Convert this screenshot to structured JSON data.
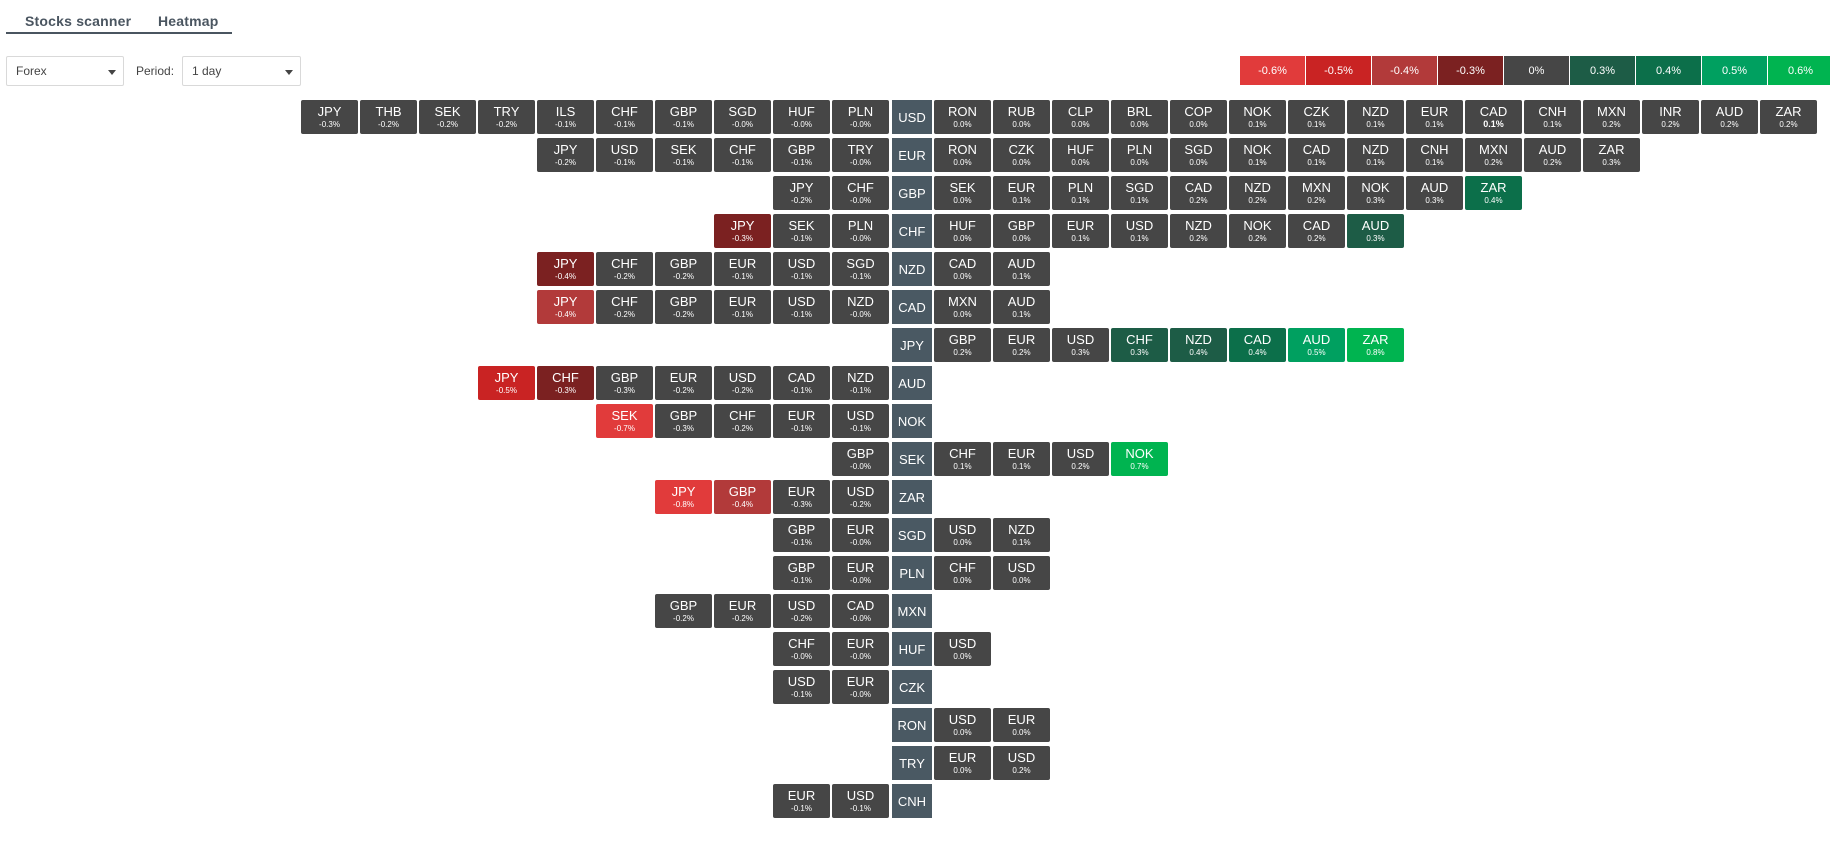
{
  "tabs": {
    "stocks": "Stocks scanner",
    "heatmap": "Heatmap"
  },
  "controls": {
    "market": "Forex",
    "period_label": "Period:",
    "period": "1 day"
  },
  "colors": {
    "neutral": "#464646",
    "base": "#4a5963",
    "-0.3": "#7b2121",
    "-0.4": "#b23a3a",
    "-0.5": "#c92323",
    "-0.6": "#e13b3b",
    "0.3": "#1d5c46",
    "0.4": "#0c6f4a",
    "0.5": "#00a060",
    "0.6": "#00b450"
  },
  "legend": [
    {
      "label": "-0.6%",
      "color": "#e13b3b"
    },
    {
      "label": "-0.5%",
      "color": "#c92323"
    },
    {
      "label": "-0.4%",
      "color": "#b23a3a"
    },
    {
      "label": "-0.3%",
      "color": "#7b2121"
    },
    {
      "label": "0%",
      "color": "#464646"
    },
    {
      "label": "0.3%",
      "color": "#1d5c46"
    },
    {
      "label": "0.4%",
      "color": "#0c6f4a"
    },
    {
      "label": "0.5%",
      "color": "#00a060"
    },
    {
      "label": "0.6%",
      "color": "#00b450"
    }
  ],
  "rows": [
    {
      "base": "USD",
      "left": [
        [
          "JPY",
          "-0.3%"
        ],
        [
          "THB",
          "-0.2%"
        ],
        [
          "SEK",
          "-0.2%"
        ],
        [
          "TRY",
          "-0.2%"
        ],
        [
          "ILS",
          "-0.1%"
        ],
        [
          "CHF",
          "-0.1%"
        ],
        [
          "GBP",
          "-0.1%"
        ],
        [
          "SGD",
          "-0.0%"
        ],
        [
          "HUF",
          "-0.0%"
        ],
        [
          "PLN",
          "-0.0%"
        ]
      ],
      "right": [
        [
          "RON",
          "0.0%"
        ],
        [
          "RUB",
          "0.0%"
        ],
        [
          "CLP",
          "0.0%"
        ],
        [
          "BRL",
          "0.0%"
        ],
        [
          "COP",
          "0.0%"
        ],
        [
          "NOK",
          "0.1%"
        ],
        [
          "CZK",
          "0.1%"
        ],
        [
          "NZD",
          "0.1%"
        ],
        [
          "EUR",
          "0.1%"
        ],
        [
          "CAD",
          "0.1%",
          null,
          true
        ],
        [
          "CNH",
          "0.1%"
        ],
        [
          "MXN",
          "0.2%"
        ],
        [
          "INR",
          "0.2%"
        ],
        [
          "AUD",
          "0.2%"
        ],
        [
          "ZAR",
          "0.2%"
        ]
      ]
    },
    {
      "base": "EUR",
      "left": [
        [
          "JPY",
          "-0.2%"
        ],
        [
          "USD",
          "-0.1%"
        ],
        [
          "SEK",
          "-0.1%"
        ],
        [
          "CHF",
          "-0.1%"
        ],
        [
          "GBP",
          "-0.1%"
        ],
        [
          "TRY",
          "-0.0%"
        ]
      ],
      "right": [
        [
          "RON",
          "0.0%"
        ],
        [
          "CZK",
          "0.0%"
        ],
        [
          "HUF",
          "0.0%"
        ],
        [
          "PLN",
          "0.0%"
        ],
        [
          "SGD",
          "0.0%"
        ],
        [
          "NOK",
          "0.1%"
        ],
        [
          "CAD",
          "0.1%"
        ],
        [
          "NZD",
          "0.1%"
        ],
        [
          "CNH",
          "0.1%"
        ],
        [
          "MXN",
          "0.2%"
        ],
        [
          "AUD",
          "0.2%"
        ],
        [
          "ZAR",
          "0.3%"
        ]
      ]
    },
    {
      "base": "GBP",
      "left": [
        [
          "JPY",
          "-0.2%"
        ],
        [
          "CHF",
          "-0.0%"
        ]
      ],
      "right": [
        [
          "SEK",
          "0.0%"
        ],
        [
          "EUR",
          "0.1%"
        ],
        [
          "PLN",
          "0.1%"
        ],
        [
          "SGD",
          "0.1%"
        ],
        [
          "CAD",
          "0.2%"
        ],
        [
          "NZD",
          "0.2%"
        ],
        [
          "MXN",
          "0.2%"
        ],
        [
          "NOK",
          "0.3%"
        ],
        [
          "AUD",
          "0.3%"
        ],
        [
          "ZAR",
          "0.4%",
          "0.4"
        ]
      ]
    },
    {
      "base": "CHF",
      "left": [
        [
          "JPY",
          "-0.3%",
          "-0.3"
        ],
        [
          "SEK",
          "-0.1%"
        ],
        [
          "PLN",
          "-0.0%"
        ]
      ],
      "right": [
        [
          "HUF",
          "0.0%"
        ],
        [
          "GBP",
          "0.0%"
        ],
        [
          "EUR",
          "0.1%"
        ],
        [
          "USD",
          "0.1%"
        ],
        [
          "NZD",
          "0.2%"
        ],
        [
          "NOK",
          "0.2%"
        ],
        [
          "CAD",
          "0.2%"
        ],
        [
          "AUD",
          "0.3%",
          "0.3"
        ]
      ]
    },
    {
      "base": "NZD",
      "left": [
        [
          "JPY",
          "-0.4%",
          "-0.3"
        ],
        [
          "CHF",
          "-0.2%"
        ],
        [
          "GBP",
          "-0.2%"
        ],
        [
          "EUR",
          "-0.1%"
        ],
        [
          "USD",
          "-0.1%"
        ],
        [
          "SGD",
          "-0.1%"
        ]
      ],
      "right": [
        [
          "CAD",
          "0.0%"
        ],
        [
          "AUD",
          "0.1%"
        ]
      ]
    },
    {
      "base": "CAD",
      "left": [
        [
          "JPY",
          "-0.4%",
          "-0.4"
        ],
        [
          "CHF",
          "-0.2%"
        ],
        [
          "GBP",
          "-0.2%"
        ],
        [
          "EUR",
          "-0.1%"
        ],
        [
          "USD",
          "-0.1%"
        ],
        [
          "NZD",
          "-0.0%"
        ]
      ],
      "right": [
        [
          "MXN",
          "0.0%"
        ],
        [
          "AUD",
          "0.1%"
        ]
      ]
    },
    {
      "base": "JPY",
      "left": [],
      "right": [
        [
          "GBP",
          "0.2%"
        ],
        [
          "EUR",
          "0.2%"
        ],
        [
          "USD",
          "0.3%"
        ],
        [
          "CHF",
          "0.3%",
          "0.3"
        ],
        [
          "NZD",
          "0.4%",
          "0.3"
        ],
        [
          "CAD",
          "0.4%",
          "0.4"
        ],
        [
          "AUD",
          "0.5%",
          "0.5"
        ],
        [
          "ZAR",
          "0.8%",
          "0.6"
        ]
      ]
    },
    {
      "base": "AUD",
      "left": [
        [
          "JPY",
          "-0.5%",
          "-0.5"
        ],
        [
          "CHF",
          "-0.3%",
          "-0.3"
        ],
        [
          "GBP",
          "-0.3%"
        ],
        [
          "EUR",
          "-0.2%"
        ],
        [
          "USD",
          "-0.2%"
        ],
        [
          "CAD",
          "-0.1%"
        ],
        [
          "NZD",
          "-0.1%"
        ]
      ],
      "right": []
    },
    {
      "base": "NOK",
      "left": [
        [
          "SEK",
          "-0.7%",
          "-0.6"
        ],
        [
          "GBP",
          "-0.3%"
        ],
        [
          "CHF",
          "-0.2%"
        ],
        [
          "EUR",
          "-0.1%"
        ],
        [
          "USD",
          "-0.1%"
        ]
      ],
      "right": []
    },
    {
      "base": "SEK",
      "left": [
        [
          "GBP",
          "-0.0%"
        ]
      ],
      "right": [
        [
          "CHF",
          "0.1%"
        ],
        [
          "EUR",
          "0.1%"
        ],
        [
          "USD",
          "0.2%"
        ],
        [
          "NOK",
          "0.7%",
          "0.6"
        ]
      ]
    },
    {
      "base": "ZAR",
      "left": [
        [
          "JPY",
          "-0.8%",
          "-0.6"
        ],
        [
          "GBP",
          "-0.4%",
          "-0.4"
        ],
        [
          "EUR",
          "-0.3%"
        ],
        [
          "USD",
          "-0.2%"
        ]
      ],
      "right": []
    },
    {
      "base": "SGD",
      "left": [
        [
          "GBP",
          "-0.1%"
        ],
        [
          "EUR",
          "-0.0%"
        ]
      ],
      "right": [
        [
          "USD",
          "0.0%"
        ],
        [
          "NZD",
          "0.1%"
        ]
      ]
    },
    {
      "base": "PLN",
      "left": [
        [
          "GBP",
          "-0.1%"
        ],
        [
          "EUR",
          "-0.0%"
        ]
      ],
      "right": [
        [
          "CHF",
          "0.0%"
        ],
        [
          "USD",
          "0.0%"
        ]
      ]
    },
    {
      "base": "MXN",
      "left": [
        [
          "GBP",
          "-0.2%"
        ],
        [
          "EUR",
          "-0.2%"
        ],
        [
          "USD",
          "-0.2%"
        ],
        [
          "CAD",
          "-0.0%"
        ]
      ],
      "right": []
    },
    {
      "base": "HUF",
      "left": [
        [
          "CHF",
          "-0.0%"
        ],
        [
          "EUR",
          "-0.0%"
        ]
      ],
      "right": [
        [
          "USD",
          "0.0%"
        ]
      ]
    },
    {
      "base": "CZK",
      "left": [
        [
          "USD",
          "-0.1%"
        ],
        [
          "EUR",
          "-0.0%"
        ]
      ],
      "right": []
    },
    {
      "base": "RON",
      "left": [],
      "right": [
        [
          "USD",
          "0.0%"
        ],
        [
          "EUR",
          "0.0%"
        ]
      ]
    },
    {
      "base": "TRY",
      "left": [],
      "right": [
        [
          "EUR",
          "0.0%"
        ],
        [
          "USD",
          "0.2%"
        ]
      ]
    },
    {
      "base": "CNH",
      "left": [
        [
          "EUR",
          "-0.1%"
        ],
        [
          "USD",
          "-0.1%"
        ]
      ],
      "right": []
    }
  ]
}
